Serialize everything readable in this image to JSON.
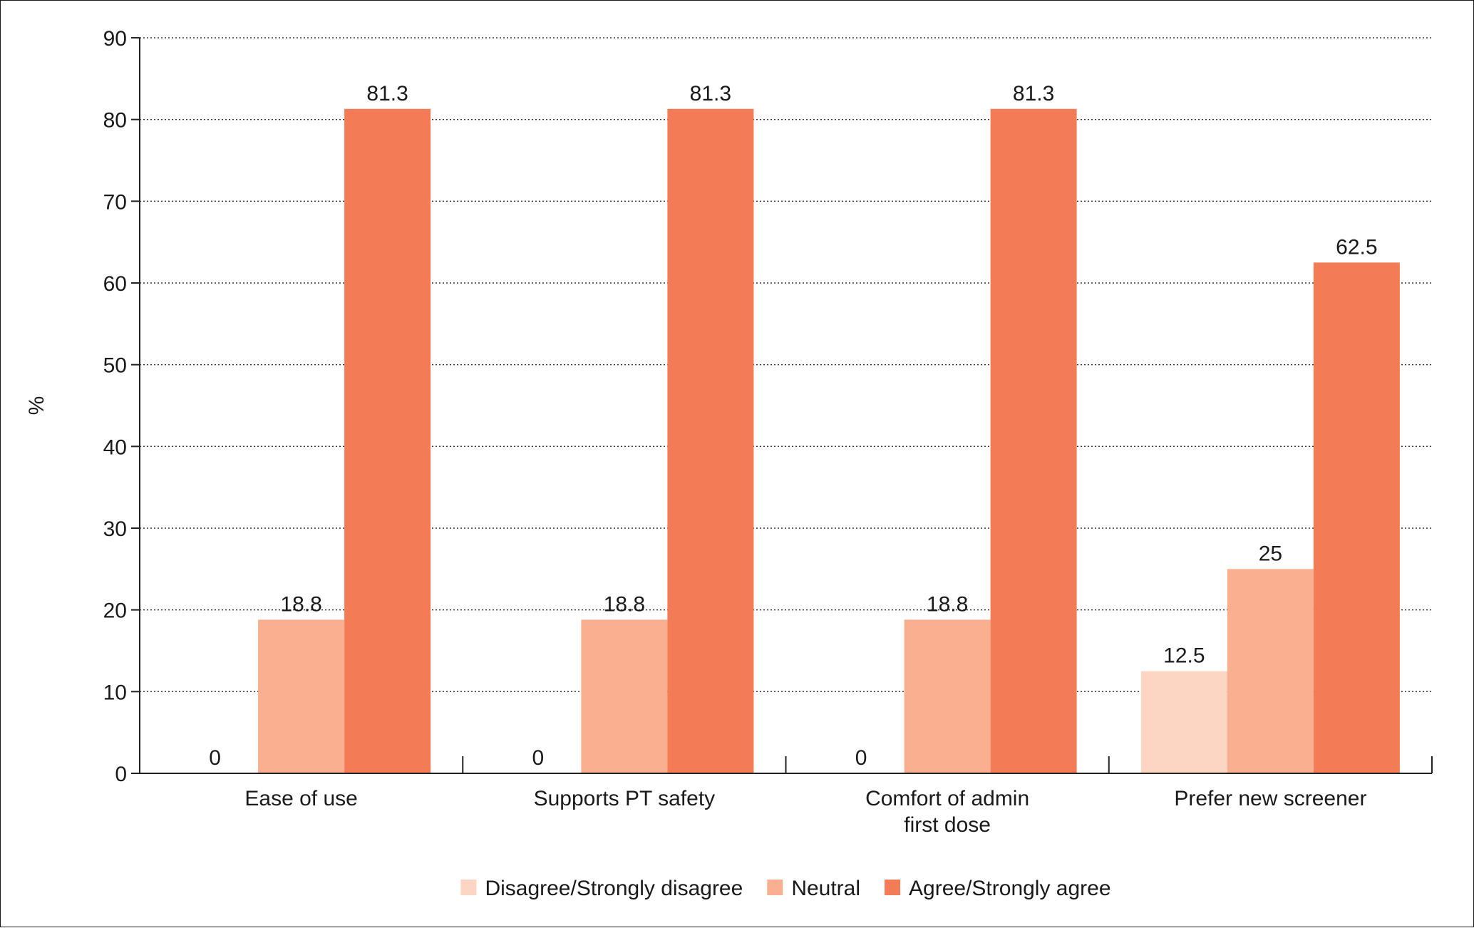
{
  "chart_data": {
    "type": "bar",
    "title": "",
    "xlabel": "",
    "ylabel": "%",
    "ylim": [
      0,
      90
    ],
    "yticks": [
      0,
      10,
      20,
      30,
      40,
      50,
      60,
      70,
      80,
      90
    ],
    "grid": "horizontal-dotted",
    "legend_position": "bottom-center",
    "categories": [
      [
        "Ease of use"
      ],
      [
        "Supports PT safety"
      ],
      [
        "Comfort of admin",
        "first dose"
      ],
      [
        "Prefer new screener"
      ]
    ],
    "series": [
      {
        "name": "Disagree/Strongly disagree",
        "color": "#FCD6C3",
        "values": [
          0,
          0,
          0,
          12.5
        ],
        "labels": [
          "0",
          "0",
          "0",
          "12.5"
        ]
      },
      {
        "name": "Neutral",
        "color": "#F9AF90",
        "values": [
          18.8,
          18.8,
          18.8,
          25
        ],
        "labels": [
          "18.8",
          "18.8",
          "18.8",
          "25"
        ]
      },
      {
        "name": "Agree/Strongly agree",
        "color": "#F37C56",
        "values": [
          81.3,
          81.3,
          81.3,
          62.5
        ],
        "labels": [
          "81.3",
          "81.3",
          "81.3",
          "62.5"
        ]
      }
    ]
  }
}
